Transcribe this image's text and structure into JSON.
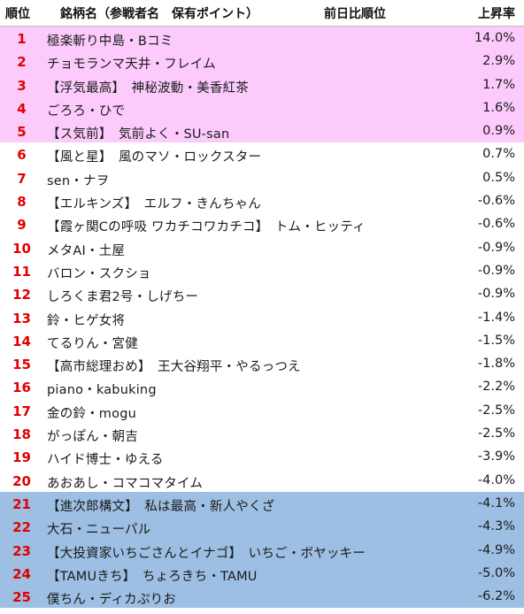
{
  "colors": {
    "top": "#fccbfc",
    "bottom": "#9dbfe3",
    "rank": "#e00000"
  },
  "header": {
    "rank": "順位",
    "name": "銘柄名（参戦者名　保有ポイント）",
    "prev": "前日比順位",
    "rate": "上昇率"
  },
  "rows": [
    {
      "rank": "1",
      "name": "極楽斬り中島・Bコミ",
      "rate": "14.0%",
      "band": "top"
    },
    {
      "rank": "2",
      "name": "チョモランマ天井・フレイム",
      "rate": "2.9%",
      "band": "top"
    },
    {
      "rank": "3",
      "name": "【浮気最高】　神秘波動・美香紅茶",
      "rate": "1.7%",
      "band": "top"
    },
    {
      "rank": "4",
      "name": "ごろろ・ひで",
      "rate": "1.6%",
      "band": "top"
    },
    {
      "rank": "5",
      "name": "【ス気前】　気前よく・SU-san",
      "rate": "0.9%",
      "band": "top"
    },
    {
      "rank": "6",
      "name": "【風と星】　風のマソ・ロックスター",
      "rate": "0.7%",
      "band": ""
    },
    {
      "rank": "7",
      "name": "sen・ナヲ",
      "rate": "0.5%",
      "band": ""
    },
    {
      "rank": "8",
      "name": "【エルキンズ】　エルフ・きんちゃん",
      "rate": "-0.6%",
      "band": ""
    },
    {
      "rank": "9",
      "name": "【霞ヶ関Cの呼吸 ワカチコワカチコ】　トム・ヒッティ",
      "rate": "-0.6%",
      "band": ""
    },
    {
      "rank": "10",
      "name": "メタAI・土屋",
      "rate": "-0.9%",
      "band": ""
    },
    {
      "rank": "11",
      "name": "バロン・スクショ",
      "rate": "-0.9%",
      "band": ""
    },
    {
      "rank": "12",
      "name": "しろくま君2号・しげちー",
      "rate": "-0.9%",
      "band": ""
    },
    {
      "rank": "13",
      "name": "鈴・ヒゲ女将",
      "rate": "-1.4%",
      "band": ""
    },
    {
      "rank": "14",
      "name": "てるりん・宮健",
      "rate": "-1.5%",
      "band": ""
    },
    {
      "rank": "15",
      "name": "【高市総理おめ】　王大谷翔平・やるっつえ",
      "rate": "-1.8%",
      "band": ""
    },
    {
      "rank": "16",
      "name": "piano・kabuking",
      "rate": "-2.2%",
      "band": ""
    },
    {
      "rank": "17",
      "name": "金の鈴・mogu",
      "rate": "-2.5%",
      "band": ""
    },
    {
      "rank": "18",
      "name": "がっぽん・朝吉",
      "rate": "-2.5%",
      "band": ""
    },
    {
      "rank": "19",
      "name": "ハイド博士・ゆえる",
      "rate": "-3.9%",
      "band": ""
    },
    {
      "rank": "20",
      "name": "あおあし・コマコマタイム",
      "rate": "-4.0%",
      "band": ""
    },
    {
      "rank": "21",
      "name": "【進次郎構文】　私は最高・新人やくざ",
      "rate": "-4.1%",
      "band": "bottom"
    },
    {
      "rank": "22",
      "name": "大石・ニューパル",
      "rate": "-4.3%",
      "band": "bottom"
    },
    {
      "rank": "23",
      "name": "【大投資家いちごさんとイナゴ】　いちご・ボヤッキー",
      "rate": "-4.9%",
      "band": "bottom"
    },
    {
      "rank": "24",
      "name": "【TAMUきち】　ちょろきち・TAMU",
      "rate": "-5.0%",
      "band": "bottom"
    },
    {
      "rank": "25",
      "name": "僕ちん・ディカぷりお",
      "rate": "-6.2%",
      "band": "bottom"
    }
  ]
}
